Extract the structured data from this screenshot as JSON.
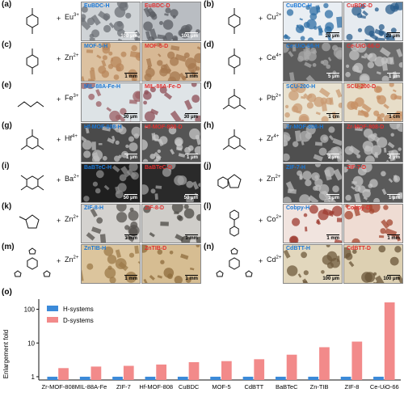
{
  "panels": [
    {
      "label": "(a)",
      "ion": "Eu",
      "charge": "3+",
      "h": "EuBDC-H",
      "d": "EuBDC-D",
      "scale_h": "100 μm",
      "scale_d": "100 μm",
      "bg_h": "#cfd3d6",
      "bg_d": "#b9bdc2",
      "fg_h": "#6c7076",
      "fg_d": "#5b5e63",
      "bar": "dark",
      "type": "bdc"
    },
    {
      "label": "(b)",
      "ion": "Cu",
      "charge": "2+",
      "h": "CuBDC-H",
      "d": "CuBDC-D",
      "scale_h": "20 μm",
      "scale_d": "20 μm",
      "bg_h": "#e9eef3",
      "bg_d": "#e6ebf0",
      "fg_h": "#2f6fa6",
      "fg_d": "#2b5e8c",
      "bar": "light",
      "type": "bdc"
    },
    {
      "label": "(c)",
      "ion": "Zn",
      "charge": "2+",
      "h": "MOF-5-H",
      "d": "MOF-5-D",
      "scale_h": "1 mm",
      "scale_d": "1 mm",
      "bg_h": "#dcc1a0",
      "bg_d": "#d7b894",
      "fg_h": "#b8865a",
      "fg_d": "#a6784f",
      "bar": "light",
      "type": "bdc"
    },
    {
      "label": "(d)",
      "ion": "Ce",
      "charge": "4+",
      "h": "Ce-UiO-66-H",
      "d": "Ce-UiO-66-D",
      "scale_h": "5 μm",
      "scale_d": "1 μm",
      "bg_h": "#5d5d5d",
      "bg_d": "#6b6b6b",
      "fg_h": "#a8a8a8",
      "fg_d": "#c4c4c4",
      "bar": "dark",
      "type": "bdc"
    },
    {
      "label": "(e)",
      "ion": "Fe",
      "charge": "3+",
      "h": "MIL-88A-Fe-H",
      "d": "MIL-88A-Fe-D",
      "scale_h": "30 μm",
      "scale_d": "30 μm",
      "bg_h": "#dde3e6",
      "bg_d": "#dfe4e7",
      "fg_h": "#9b5f64",
      "fg_d": "#8e4e55",
      "bar": "light",
      "type": "fum"
    },
    {
      "label": "(f)",
      "ion": "Pb",
      "charge": "2+",
      "h": "SCU-200-H",
      "d": "SCU-200-D",
      "scale_h": "1 cm",
      "scale_d": "1 cm",
      "bg_h": "#e9e2d0",
      "bg_d": "#e7ddc8",
      "fg_h": "#c99b73",
      "fg_d": "#c58e62",
      "bar": "light",
      "type": "btc"
    },
    {
      "label": "(g)",
      "ion": "Hf",
      "charge": "4+",
      "h": "Hf-MOF-808-H",
      "d": "Hf-MOF-808-D",
      "scale_h": "1 μm",
      "scale_d": "1 μm",
      "bg_h": "#4a4a4a",
      "bg_d": "#555555",
      "fg_h": "#bdbdbd",
      "fg_d": "#c8c8c8",
      "bar": "dark",
      "type": "btc"
    },
    {
      "label": "(h)",
      "ion": "Zr",
      "charge": "4+",
      "h": "Zr-MOF-808-H",
      "d": "Zr-MOF-808-D",
      "scale_h": "2 μm",
      "scale_d": "2 μm",
      "bg_h": "#4f4f4f",
      "bg_d": "#585858",
      "fg_h": "#b5b5b5",
      "fg_d": "#c2c2c2",
      "bar": "dark",
      "type": "btc"
    },
    {
      "label": "(i)",
      "ion": "Ba",
      "charge": "2+",
      "h": "BaBTeC-H",
      "d": "BaBTeC-D",
      "scale_h": "50 μm",
      "scale_d": "50 μm",
      "bg_h": "#1f1f1f",
      "bg_d": "#2a2a2a",
      "fg_h": "#8c8c8c",
      "fg_d": "#a0a0a0",
      "bar": "dark",
      "type": "btec"
    },
    {
      "label": "(j)",
      "ion": "Zn",
      "charge": "2+",
      "h": "ZIF-7-H",
      "d": "ZIF-7-D",
      "scale_h": "1 μm",
      "scale_d": "1 μm",
      "bg_h": "#505050",
      "bg_d": "#5a5a5a",
      "fg_h": "#bcbcbc",
      "fg_d": "#c6c6c6",
      "bar": "dark",
      "type": "bim"
    },
    {
      "label": "(k)",
      "ion": "Zn",
      "charge": "2+",
      "h": "ZIF-8-H",
      "d": "ZIF-8-D",
      "scale_h": "1 mm",
      "scale_d": "1 mm",
      "bg_h": "#d4d2cf",
      "bg_d": "#cfcdc9",
      "fg_h": "#56524d",
      "fg_d": "#4b4843",
      "bar": "light",
      "type": "mim"
    },
    {
      "label": "(l)",
      "ion": "Co",
      "charge": "2+",
      "h": "Cobpy-H",
      "d": "Cobpy-D",
      "scale_h": "1 mm",
      "scale_d": "1 mm",
      "bg_h": "#f1e4df",
      "bg_d": "#efdcd3",
      "fg_h": "#9d3c32",
      "fg_d": "#a3462f",
      "bar": "light",
      "type": "bpy"
    },
    {
      "label": "(m)",
      "ion": "Zn",
      "charge": "2+",
      "h": "ZnTIB-H",
      "d": "ZnTIB-D",
      "scale_h": "1 mm",
      "scale_d": "1 mm",
      "bg_h": "#dcc59d",
      "bg_d": "#d6bd92",
      "fg_h": "#9c7a49",
      "fg_d": "#8e6c3c",
      "bar": "light",
      "type": "tib"
    },
    {
      "label": "(n)",
      "ion": "Cd",
      "charge": "2+",
      "h": "CdBTT-H",
      "d": "CdBTT-D",
      "scale_h": "100 μm",
      "scale_d": "100 μm",
      "bg_h": "#e2d7bd",
      "bg_d": "#ddd0b2",
      "fg_h": "#6f5b3e",
      "fg_d": "#6a5538",
      "bar": "light",
      "type": "btt"
    }
  ],
  "chart_data": {
    "label": "(o)",
    "type": "bar",
    "ylabel": "Enlargement fold",
    "yscale": "log",
    "ylim": [
      0.8,
      200
    ],
    "yticks": [
      "1",
      "10",
      "100"
    ],
    "categories": [
      "Zr-MOF-808",
      "MIL-88A-Fe",
      "ZIF-7",
      "Hf-MOF-808",
      "CuBDC",
      "MOF-5",
      "CdBTT",
      "BaBTeC",
      "Zn-TIB",
      "ZIF-8",
      "Ce-UiO-66"
    ],
    "series": [
      {
        "name": "H-systems",
        "color": "#3b8ad9",
        "values": [
          1,
          1,
          1,
          1,
          1,
          1,
          1,
          1,
          1,
          1,
          1
        ]
      },
      {
        "name": "D-systems",
        "color": "#f28a8a",
        "values": [
          1.8,
          2.0,
          2.1,
          2.3,
          2.7,
          2.9,
          3.3,
          4.5,
          7.5,
          11,
          160
        ]
      }
    ],
    "legend_position": "top-left"
  }
}
